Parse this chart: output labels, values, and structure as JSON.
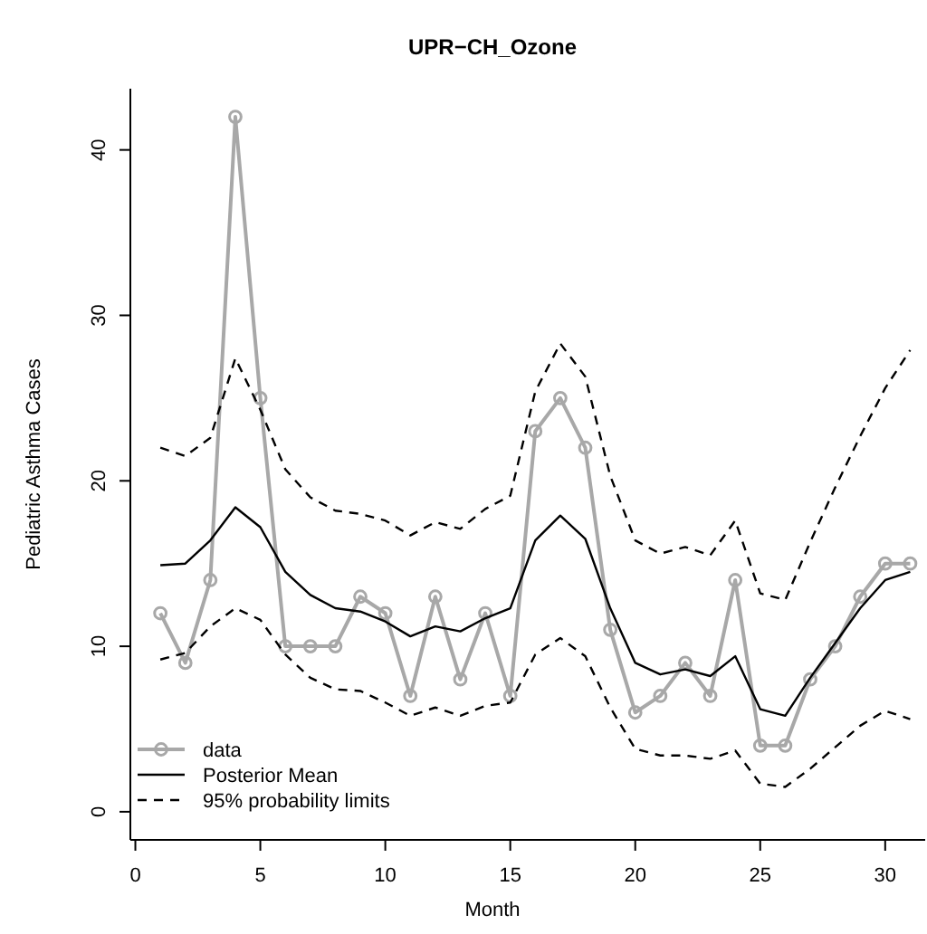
{
  "chart_data": {
    "type": "line",
    "title": "UPR−CH_Ozone",
    "xlabel": "Month",
    "ylabel": "Pediatric Asthma Cases",
    "x": [
      1,
      2,
      3,
      4,
      5,
      6,
      7,
      8,
      9,
      10,
      11,
      12,
      13,
      14,
      15,
      16,
      17,
      18,
      19,
      20,
      21,
      22,
      23,
      24,
      25,
      26,
      27,
      28,
      29,
      30,
      31
    ],
    "xlim": [
      -0.2,
      31.6
    ],
    "xticks": [
      0,
      5,
      10,
      15,
      20,
      25,
      30
    ],
    "ylim": [
      -1.7,
      43.7
    ],
    "yticks": [
      0,
      10,
      20,
      30,
      40
    ],
    "legend": "bottom left",
    "grid": false,
    "series": [
      {
        "name": "data",
        "color": "#a8a8a8",
        "marker": "circle",
        "line_style": "solid",
        "values": [
          12,
          9,
          14,
          42,
          25,
          10,
          10,
          10,
          13,
          12,
          7,
          13,
          8,
          12,
          7,
          23,
          25,
          22,
          11,
          6,
          7,
          9,
          7,
          14,
          4,
          4,
          8,
          10,
          13,
          15,
          15
        ]
      },
      {
        "name": "Posterior Mean",
        "color": "#000000",
        "marker": "none",
        "line_style": "solid",
        "values": [
          14.9,
          15.0,
          16.4,
          18.4,
          17.2,
          14.5,
          13.1,
          12.3,
          12.1,
          11.5,
          10.6,
          11.2,
          10.9,
          11.7,
          12.3,
          16.4,
          17.9,
          16.5,
          12.3,
          9.0,
          8.3,
          8.6,
          8.2,
          9.4,
          6.2,
          5.8,
          8.1,
          10.2,
          12.3,
          14.0,
          14.5
        ]
      },
      {
        "name": "95% probability limits",
        "color": "#000000",
        "marker": "none",
        "line_style": "dashed",
        "values": [
          22.0,
          21.5,
          22.6,
          27.4,
          24.3,
          20.7,
          19.0,
          18.2,
          18.0,
          17.6,
          16.7,
          17.5,
          17.1,
          18.3,
          19.1,
          25.4,
          28.3,
          26.3,
          20.3,
          16.4,
          15.6,
          16.0,
          15.5,
          17.6,
          13.2,
          12.8,
          16.3,
          19.6,
          22.7,
          25.6,
          27.9
        ]
      },
      {
        "color": "#000000",
        "marker": "none",
        "line_style": "dashed",
        "values": [
          9.2,
          9.6,
          11.2,
          12.3,
          11.6,
          9.5,
          8.1,
          7.4,
          7.3,
          6.6,
          5.8,
          6.3,
          5.8,
          6.4,
          6.6,
          9.5,
          10.5,
          9.4,
          6.3,
          3.8,
          3.4,
          3.4,
          3.2,
          3.7,
          1.7,
          1.5,
          2.6,
          3.9,
          5.2,
          6.1,
          5.6
        ]
      }
    ]
  }
}
